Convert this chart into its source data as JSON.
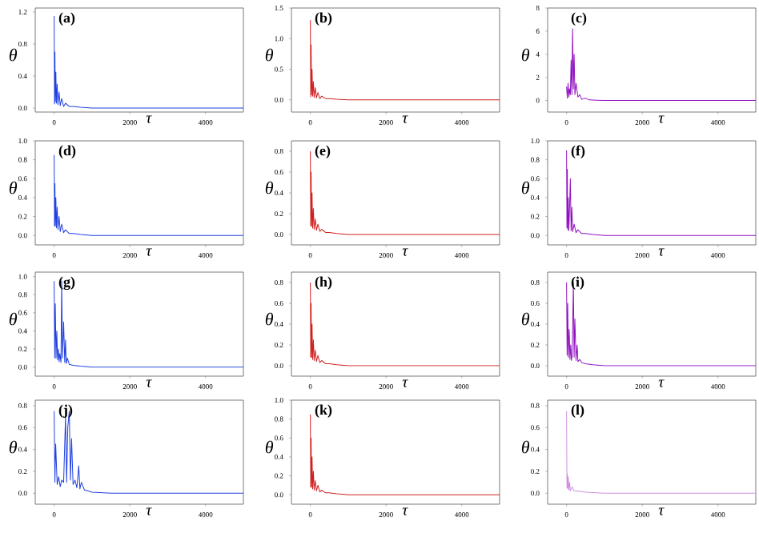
{
  "chart_data": [
    {
      "type": "line",
      "xlabel": "τ",
      "ylabel": "θ",
      "annotations": [
        "(a)"
      ],
      "color": "#2040e0",
      "xlim": [
        -500,
        5000
      ],
      "xticks": [
        0,
        2000,
        4000
      ],
      "ylim": [
        -0.05,
        1.25
      ],
      "yticks": [
        {
          "value": 0,
          "label": "0.0"
        },
        {
          "value": 0.4,
          "label": "0.4"
        },
        {
          "value": 0.8,
          "label": "0.8"
        },
        {
          "value": 1.2,
          "label": "1.2"
        }
      ],
      "x": [
        0,
        10,
        20,
        30,
        45,
        60,
        80,
        100,
        130,
        160,
        200,
        250,
        300,
        400,
        500,
        700,
        1000,
        1500,
        5000
      ],
      "values": [
        1.15,
        0.05,
        0.7,
        0.08,
        0.45,
        0.06,
        0.3,
        0.04,
        0.2,
        0.03,
        0.12,
        0.02,
        0.06,
        0.02,
        0.02,
        0.01,
        0,
        0,
        0
      ]
    },
    {
      "type": "line",
      "xlabel": "τ",
      "ylabel": "θ",
      "annotations": [
        "(b)"
      ],
      "color": "#d02020",
      "xlim": [
        -500,
        5000
      ],
      "xticks": [
        0,
        2000,
        4000
      ],
      "ylim": [
        -0.2,
        1.5
      ],
      "yticks": [
        {
          "value": 0,
          "label": "0.0"
        },
        {
          "value": 0.5,
          "label": "0.5"
        },
        {
          "value": 1,
          "label": "1.0"
        },
        {
          "value": 1.5,
          "label": "1.5"
        }
      ],
      "x": [
        0,
        10,
        20,
        30,
        45,
        60,
        80,
        100,
        130,
        160,
        200,
        250,
        300,
        400,
        500,
        700,
        1000,
        1500,
        5000
      ],
      "values": [
        1.3,
        0.05,
        0.9,
        0.08,
        0.5,
        0.06,
        0.3,
        0.04,
        0.2,
        0.03,
        0.12,
        0.02,
        0.06,
        0.02,
        0.02,
        0.01,
        0,
        0,
        0
      ]
    },
    {
      "type": "line",
      "xlabel": "τ",
      "ylabel": "θ",
      "annotations": [
        "(c)"
      ],
      "color": "#9010c0",
      "xlim": [
        -500,
        5000
      ],
      "xticks": [
        0,
        2000,
        4000
      ],
      "ylim": [
        -1,
        8
      ],
      "yticks": [
        0,
        2,
        4,
        6,
        8
      ],
      "x": [
        0,
        20,
        40,
        60,
        80,
        100,
        120,
        140,
        160,
        180,
        200,
        220,
        250,
        300,
        350,
        400,
        500,
        600,
        800,
        1000,
        5000
      ],
      "values": [
        1.2,
        0.2,
        1.5,
        0.3,
        1.0,
        0.5,
        3.5,
        0.5,
        6.2,
        1.0,
        4.0,
        0.5,
        1.5,
        0.3,
        0.5,
        0.1,
        0.2,
        0.05,
        0.02,
        0,
        0
      ]
    },
    {
      "type": "line",
      "xlabel": "τ",
      "ylabel": "θ",
      "annotations": [
        "(d)"
      ],
      "color": "#2040e0",
      "xlim": [
        -500,
        5000
      ],
      "xticks": [
        0,
        2000,
        4000
      ],
      "ylim": [
        -0.1,
        1.0
      ],
      "yticks": [
        {
          "value": 0,
          "label": "0.0"
        },
        {
          "value": 0.2,
          "label": "0.2"
        },
        {
          "value": 0.4,
          "label": "0.4"
        },
        {
          "value": 0.6,
          "label": "0.6"
        },
        {
          "value": 0.8,
          "label": "0.8"
        },
        {
          "value": 1,
          "label": "1.0"
        }
      ],
      "x": [
        0,
        10,
        20,
        30,
        45,
        60,
        80,
        100,
        130,
        160,
        200,
        250,
        300,
        400,
        500,
        700,
        1000,
        1500,
        5000
      ],
      "values": [
        0.85,
        0.1,
        0.55,
        0.1,
        0.4,
        0.08,
        0.3,
        0.06,
        0.2,
        0.04,
        0.12,
        0.03,
        0.06,
        0.02,
        0.02,
        0.01,
        0,
        0,
        0
      ]
    },
    {
      "type": "line",
      "xlabel": "τ",
      "ylabel": "θ",
      "annotations": [
        "(e)"
      ],
      "color": "#d02020",
      "xlim": [
        -500,
        5000
      ],
      "xticks": [
        0,
        2000,
        4000
      ],
      "ylim": [
        -0.1,
        0.9
      ],
      "yticks": [
        {
          "value": 0,
          "label": "0.0"
        },
        {
          "value": 0.2,
          "label": "0.2"
        },
        {
          "value": 0.4,
          "label": "0.4"
        },
        {
          "value": 0.6,
          "label": "0.6"
        },
        {
          "value": 0.8,
          "label": "0.8"
        }
      ],
      "x": [
        0,
        10,
        20,
        30,
        45,
        60,
        80,
        100,
        130,
        160,
        200,
        250,
        300,
        400,
        500,
        700,
        1000,
        1500,
        5000
      ],
      "values": [
        0.8,
        0.08,
        0.6,
        0.08,
        0.4,
        0.06,
        0.25,
        0.05,
        0.15,
        0.04,
        0.1,
        0.03,
        0.05,
        0.02,
        0.02,
        0.01,
        0,
        0,
        0
      ]
    },
    {
      "type": "line",
      "xlabel": "τ",
      "ylabel": "θ",
      "annotations": [
        "(f)"
      ],
      "color": "#9010c0",
      "xlim": [
        -500,
        5000
      ],
      "xticks": [
        0,
        2000,
        4000
      ],
      "ylim": [
        -0.1,
        1.0
      ],
      "yticks": [
        {
          "value": 0,
          "label": "0.0"
        },
        {
          "value": 0.2,
          "label": "0.2"
        },
        {
          "value": 0.4,
          "label": "0.4"
        },
        {
          "value": 0.6,
          "label": "0.6"
        },
        {
          "value": 0.8,
          "label": "0.8"
        },
        {
          "value": 1,
          "label": "1.0"
        }
      ],
      "x": [
        0,
        10,
        20,
        30,
        45,
        60,
        80,
        100,
        120,
        140,
        160,
        200,
        250,
        300,
        400,
        500,
        700,
        1000,
        1500,
        5000
      ],
      "values": [
        0.9,
        0.08,
        0.7,
        0.06,
        0.4,
        0.05,
        0.3,
        0.6,
        0.05,
        0.3,
        0.04,
        0.12,
        0.03,
        0.06,
        0.02,
        0.02,
        0.01,
        0,
        0,
        0
      ]
    },
    {
      "type": "line",
      "xlabel": "τ",
      "ylabel": "θ",
      "annotations": [
        "(g)"
      ],
      "color": "#2040e0",
      "xlim": [
        -500,
        5000
      ],
      "xticks": [
        0,
        2000,
        4000
      ],
      "ylim": [
        -0.1,
        1.05
      ],
      "yticks": [
        {
          "value": 0,
          "label": "0.0"
        },
        {
          "value": 0.2,
          "label": "0.2"
        },
        {
          "value": 0.4,
          "label": "0.4"
        },
        {
          "value": 0.6,
          "label": "0.6"
        },
        {
          "value": 0.8,
          "label": "0.8"
        },
        {
          "value": 1,
          "label": "1.0"
        }
      ],
      "x": [
        0,
        15,
        30,
        50,
        70,
        90,
        110,
        130,
        150,
        180,
        200,
        220,
        250,
        280,
        300,
        320,
        350,
        400,
        500,
        700,
        1000,
        1500,
        5000
      ],
      "values": [
        0.95,
        0.1,
        0.7,
        0.1,
        0.4,
        0.08,
        0.2,
        0.06,
        0.15,
        0.05,
        0.95,
        0.1,
        0.5,
        0.05,
        0.3,
        0.04,
        0.1,
        0.03,
        0.02,
        0.01,
        0,
        0,
        0
      ]
    },
    {
      "type": "line",
      "xlabel": "τ",
      "ylabel": "θ",
      "annotations": [
        "(h)"
      ],
      "color": "#d02020",
      "xlim": [
        -500,
        5000
      ],
      "xticks": [
        0,
        2000,
        4000
      ],
      "ylim": [
        -0.1,
        0.9
      ],
      "yticks": [
        {
          "value": 0,
          "label": "0.0"
        },
        {
          "value": 0.2,
          "label": "0.2"
        },
        {
          "value": 0.4,
          "label": "0.4"
        },
        {
          "value": 0.6,
          "label": "0.6"
        },
        {
          "value": 0.8,
          "label": "0.8"
        }
      ],
      "x": [
        0,
        10,
        20,
        30,
        45,
        60,
        80,
        100,
        130,
        160,
        200,
        250,
        300,
        400,
        500,
        700,
        1000,
        1500,
        5000
      ],
      "values": [
        0.8,
        0.08,
        0.6,
        0.08,
        0.4,
        0.06,
        0.25,
        0.05,
        0.15,
        0.04,
        0.1,
        0.03,
        0.05,
        0.02,
        0.02,
        0.01,
        0,
        0,
        0
      ]
    },
    {
      "type": "line",
      "xlabel": "τ",
      "ylabel": "θ",
      "annotations": [
        "(i)"
      ],
      "color": "#9010c0",
      "xlim": [
        -500,
        5000
      ],
      "xticks": [
        0,
        2000,
        4000
      ],
      "ylim": [
        -0.1,
        0.9
      ],
      "yticks": [
        {
          "value": 0,
          "label": "0.0"
        },
        {
          "value": 0.2,
          "label": "0.2"
        },
        {
          "value": 0.4,
          "label": "0.4"
        },
        {
          "value": 0.6,
          "label": "0.6"
        },
        {
          "value": 0.8,
          "label": "0.8"
        }
      ],
      "x": [
        0,
        15,
        30,
        50,
        70,
        90,
        110,
        130,
        150,
        180,
        200,
        220,
        250,
        280,
        300,
        350,
        400,
        500,
        700,
        1000,
        1500,
        5000
      ],
      "values": [
        0.8,
        0.1,
        0.6,
        0.08,
        0.35,
        0.06,
        0.2,
        0.05,
        0.1,
        0.8,
        0.08,
        0.45,
        0.05,
        0.2,
        0.04,
        0.06,
        0.03,
        0.02,
        0.01,
        0,
        0,
        0
      ]
    },
    {
      "type": "line",
      "xlabel": "τ",
      "ylabel": "θ",
      "annotations": [
        "(j)"
      ],
      "color": "#2040e0",
      "xlim": [
        -500,
        5000
      ],
      "xticks": [
        0,
        2000,
        4000
      ],
      "ylim": [
        -0.1,
        0.85
      ],
      "yticks": [
        {
          "value": 0,
          "label": "0.0"
        },
        {
          "value": 0.2,
          "label": "0.2"
        },
        {
          "value": 0.4,
          "label": "0.4"
        },
        {
          "value": 0.6,
          "label": "0.6"
        },
        {
          "value": 0.8,
          "label": "0.8"
        }
      ],
      "x": [
        0,
        20,
        40,
        80,
        120,
        160,
        200,
        250,
        300,
        330,
        360,
        400,
        430,
        460,
        500,
        550,
        600,
        650,
        680,
        720,
        800,
        900,
        1000,
        1500,
        5000
      ],
      "values": [
        0.75,
        0.1,
        0.45,
        0.08,
        0.15,
        0.06,
        0.12,
        0.1,
        0.7,
        0.1,
        0.6,
        0.75,
        0.12,
        0.5,
        0.08,
        0.12,
        0.05,
        0.25,
        0.04,
        0.1,
        0.03,
        0.02,
        0.01,
        0,
        0
      ]
    },
    {
      "type": "line",
      "xlabel": "τ",
      "ylabel": "θ",
      "annotations": [
        "(k)"
      ],
      "color": "#d02020",
      "xlim": [
        -500,
        5000
      ],
      "xticks": [
        0,
        2000,
        4000
      ],
      "ylim": [
        -0.1,
        1.0
      ],
      "yticks": [
        {
          "value": 0,
          "label": "0.0"
        },
        {
          "value": 0.2,
          "label": "0.2"
        },
        {
          "value": 0.4,
          "label": "0.4"
        },
        {
          "value": 0.6,
          "label": "0.6"
        },
        {
          "value": 0.8,
          "label": "0.8"
        },
        {
          "value": 1,
          "label": "1.0"
        }
      ],
      "x": [
        0,
        10,
        20,
        30,
        45,
        60,
        80,
        100,
        130,
        160,
        200,
        250,
        300,
        400,
        500,
        700,
        1000,
        1500,
        5000
      ],
      "values": [
        0.85,
        0.08,
        0.6,
        0.08,
        0.4,
        0.06,
        0.25,
        0.05,
        0.15,
        0.04,
        0.1,
        0.03,
        0.05,
        0.02,
        0.02,
        0.01,
        0,
        0,
        0
      ]
    },
    {
      "type": "line",
      "xlabel": "τ",
      "ylabel": "θ",
      "annotations": [
        "(l)"
      ],
      "color": "#d090e0",
      "xlim": [
        -500,
        5000
      ],
      "xticks": [
        0,
        2000,
        4000
      ],
      "ylim": [
        -0.1,
        0.85
      ],
      "yticks": [
        {
          "value": 0,
          "label": "0.0"
        },
        {
          "value": 0.2,
          "label": "0.2"
        },
        {
          "value": 0.4,
          "label": "0.4"
        },
        {
          "value": 0.6,
          "label": "0.6"
        },
        {
          "value": 0.8,
          "label": "0.8"
        }
      ],
      "x": [
        0,
        10,
        20,
        30,
        45,
        60,
        80,
        100,
        150,
        200,
        300,
        500,
        1000,
        5000
      ],
      "values": [
        0.75,
        0.05,
        0.18,
        0.04,
        0.15,
        0.03,
        0.1,
        0.02,
        0.06,
        0.02,
        0.02,
        0.01,
        0,
        0
      ]
    }
  ]
}
